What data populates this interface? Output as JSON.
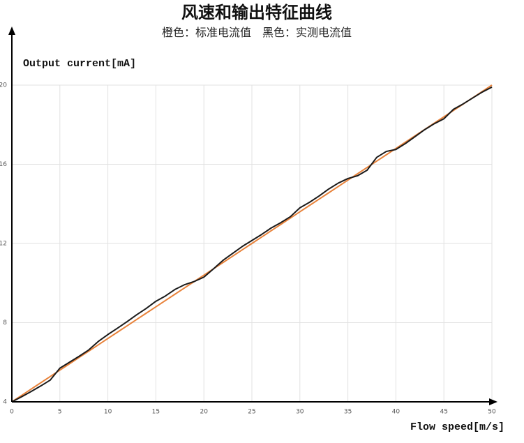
{
  "chart_data": {
    "type": "line",
    "title": "风速和输出特征曲线",
    "subtitle": "橙色：标准电流值　黑色：实测电流值",
    "y_label": "Output current[mA]",
    "x_label": "Flow speed[m/s]",
    "x": [
      0,
      1,
      2,
      3,
      4,
      5,
      6,
      7,
      8,
      9,
      10,
      11,
      12,
      13,
      14,
      15,
      16,
      17,
      18,
      19,
      20,
      21,
      22,
      23,
      24,
      25,
      26,
      27,
      28,
      29,
      30,
      31,
      32,
      33,
      34,
      35,
      36,
      37,
      38,
      39,
      40,
      41,
      42,
      43,
      44,
      45,
      46,
      47,
      48,
      49,
      50
    ],
    "series": [
      {
        "color": "#e8823a",
        "values": [
          4,
          4.32,
          4.64,
          4.96,
          5.28,
          5.6,
          5.92,
          6.24,
          6.56,
          6.88,
          7.2,
          7.52,
          7.84,
          8.16,
          8.48,
          8.8,
          9.12,
          9.44,
          9.76,
          10.08,
          10.4,
          10.72,
          11.04,
          11.36,
          11.68,
          12,
          12.32,
          12.64,
          12.96,
          13.28,
          13.6,
          13.92,
          14.24,
          14.56,
          14.88,
          15.2,
          15.52,
          15.84,
          16.16,
          16.48,
          16.8,
          17.12,
          17.44,
          17.76,
          18.08,
          18.4,
          18.72,
          19.04,
          19.36,
          19.68,
          20
        ]
      },
      {
        "color": "#1a1a1a",
        "values": [
          4,
          4.25,
          4.52,
          4.8,
          5.1,
          5.7,
          6,
          6.3,
          6.62,
          7.05,
          7.4,
          7.72,
          8.05,
          8.4,
          8.72,
          9.08,
          9.35,
          9.68,
          9.92,
          10.08,
          10.3,
          10.72,
          11.15,
          11.5,
          11.85,
          12.15,
          12.45,
          12.78,
          13.05,
          13.35,
          13.8,
          14.08,
          14.4,
          14.75,
          15.05,
          15.28,
          15.42,
          15.7,
          16.35,
          16.65,
          16.75,
          17.05,
          17.4,
          17.75,
          18.05,
          18.3,
          18.78,
          19.05,
          19.35,
          19.65,
          19.9
        ]
      }
    ],
    "xlim": [
      0,
      50
    ],
    "xticks": [
      0,
      5,
      10,
      15,
      20,
      25,
      30,
      35,
      40,
      45,
      50
    ],
    "ylim": [
      4,
      20
    ],
    "yticks": [
      4,
      8,
      12,
      16,
      20
    ],
    "grid": true
  }
}
